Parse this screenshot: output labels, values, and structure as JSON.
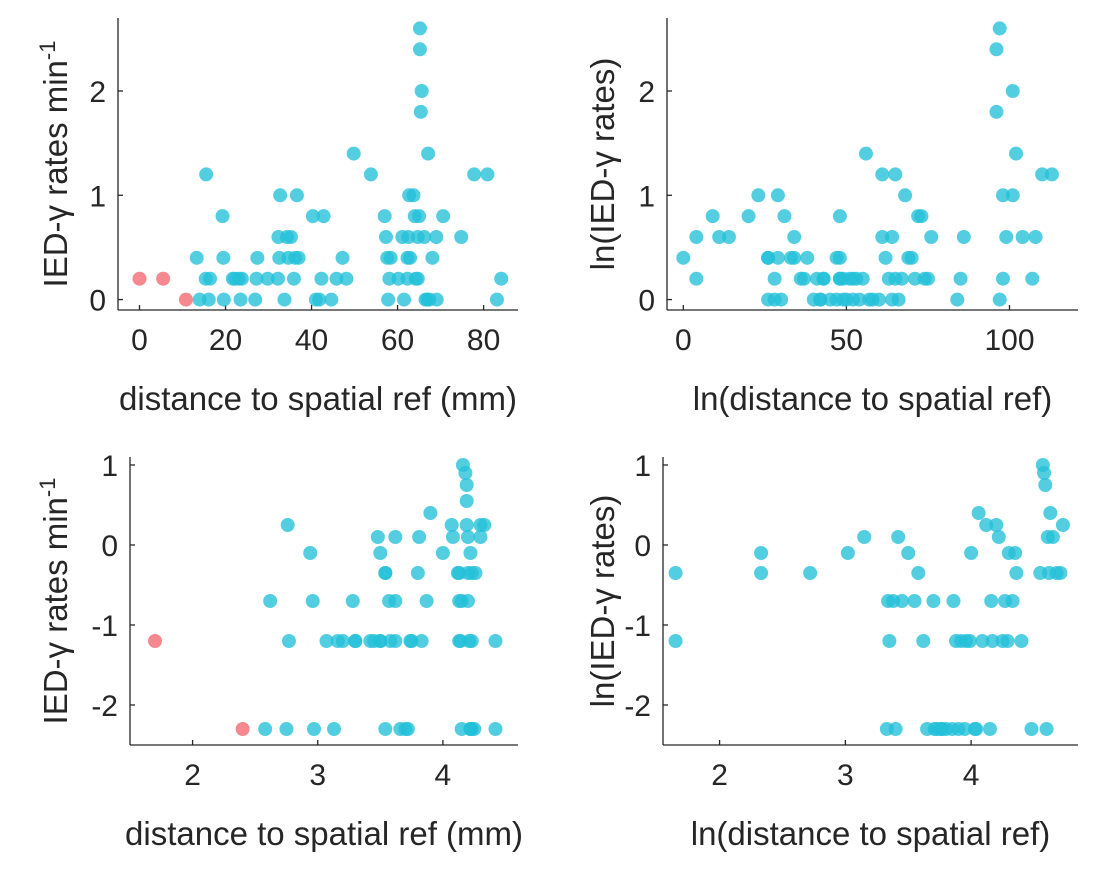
{
  "colors": {
    "teal": "#22c0d8",
    "red": "#f4737d",
    "axis": "#262626"
  },
  "chart_data": [
    {
      "type": "scatter",
      "title": "",
      "xlabel": "distance to spatial ref (mm)",
      "ylabel": "IED-γ rates min",
      "ylabel_sup": "-1",
      "xlim": [
        -5,
        88
      ],
      "ylim": [
        -0.1,
        2.7
      ],
      "xticks": [
        0,
        20,
        40,
        60,
        80
      ],
      "yticks": [
        0,
        1,
        2
      ],
      "xtick_labels": [
        "0",
        "20",
        "40",
        "60",
        "80"
      ],
      "ytick_labels": [
        "0",
        "1",
        "2"
      ],
      "series": [
        {
          "color": "red",
          "x": [
            0,
            5.5,
            10.8
          ],
          "y": [
            0.2,
            0.2,
            0
          ]
        },
        {
          "color": "teal",
          "x": [
            13.3,
            14,
            15.4,
            15.5,
            16.1,
            16.4,
            19.3,
            19.5,
            19.6,
            21.7,
            22.2,
            23.1,
            23.5,
            23.8,
            26.9,
            27.2,
            27.4,
            29.8,
            32.2,
            32.3,
            32.5,
            32.7,
            33.7,
            34.3,
            34.6,
            35.2,
            35.9,
            36.2,
            36.6,
            37,
            40.3,
            41,
            41.8,
            42.3,
            42.8,
            44.6,
            45.8,
            47.2,
            48.1,
            49.8,
            53.8,
            57,
            57.3,
            57.6,
            57.8,
            58.1,
            58.4,
            60.2,
            61.1,
            61.5,
            62.3,
            62.3,
            62.5,
            62.7,
            62.9,
            63.7,
            64,
            64.2,
            64.7,
            64.7,
            65,
            65.2,
            65.2,
            65.4,
            65.6,
            66.2,
            66.5,
            66.9,
            67.1,
            67.4,
            68.1,
            69,
            69.1,
            70.6,
            74.8,
            77.8,
            80.9,
            83.1,
            84.1
          ],
          "y": [
            0.4,
            0,
            0.2,
            1.2,
            0,
            0.2,
            0.8,
            0.4,
            0,
            0.2,
            0.2,
            0.2,
            0,
            0.2,
            0,
            0.2,
            0.4,
            0.2,
            0.2,
            0.6,
            0.4,
            1,
            0,
            0.6,
            0.4,
            0.6,
            0.2,
            0.4,
            1,
            0.4,
            0.8,
            0,
            0,
            0.2,
            0.8,
            0,
            0.2,
            0.4,
            0.2,
            1.4,
            1.2,
            0.8,
            0.6,
            0.4,
            0,
            0.2,
            0.4,
            0.2,
            0.6,
            0,
            0.2,
            0.4,
            0.6,
            1,
            0.4,
            1,
            0.8,
            0.2,
            0.2,
            0.6,
            0.8,
            2.6,
            2.4,
            1.8,
            2,
            0.6,
            0,
            0,
            1.4,
            0,
            0.4,
            0.6,
            0,
            0.8,
            0.6,
            1.2,
            1.2,
            0,
            0.2
          ]
        }
      ]
    },
    {
      "type": "scatter",
      "title": "",
      "xlabel": "ln(distance to spatial ref)",
      "ylabel": "ln(IED-γ rates)",
      "ylabel_sup": "",
      "xlim": [
        -5,
        121
      ],
      "ylim": [
        -0.1,
        2.7
      ],
      "xticks": [
        0,
        50,
        100
      ],
      "yticks": [
        0,
        1,
        2
      ],
      "xtick_labels": [
        "0",
        "50",
        "100"
      ],
      "ytick_labels": [
        "0",
        "1",
        "2"
      ],
      "series": [
        {
          "color": "teal",
          "x": [
            0,
            4,
            4,
            9,
            11,
            14,
            20,
            23,
            26,
            26,
            26,
            28,
            28,
            29,
            29,
            30,
            31,
            33,
            34,
            34,
            36,
            37,
            38,
            40,
            41,
            42,
            42,
            43,
            43,
            45,
            47,
            47,
            48,
            48,
            48,
            48,
            49,
            49,
            50,
            51,
            52,
            52,
            53,
            54,
            55,
            56,
            57,
            58,
            60,
            61,
            61,
            62,
            63,
            64,
            64,
            65,
            65,
            66,
            67,
            68,
            69,
            70,
            71,
            72,
            73,
            74,
            75,
            76,
            84,
            85,
            86,
            96,
            96,
            97,
            97,
            98,
            98,
            99,
            101,
            101,
            102,
            104,
            107,
            108,
            110,
            113
          ],
          "y": [
            0.4,
            0.2,
            0.6,
            0.8,
            0.6,
            0.6,
            0.8,
            1,
            0.4,
            0.4,
            0,
            0.2,
            0,
            0.4,
            1,
            0,
            0.8,
            0.4,
            0.4,
            0.6,
            0.2,
            0.2,
            0.4,
            0,
            0.2,
            0,
            0,
            0.2,
            0.2,
            0,
            0.4,
            0,
            0.4,
            0.8,
            0.2,
            0.2,
            0,
            0.2,
            0,
            0.2,
            0.2,
            0,
            0.2,
            0,
            0.2,
            1.4,
            0,
            0,
            0,
            0.6,
            1.2,
            0.4,
            0.2,
            0,
            0.6,
            1.2,
            0.2,
            0,
            0.2,
            1,
            0.4,
            0.4,
            0.2,
            0.8,
            0.8,
            0.2,
            0.2,
            0.6,
            0,
            0.2,
            0.6,
            1.8,
            2.4,
            2.6,
            0,
            1,
            0.2,
            0.6,
            1,
            2,
            1.4,
            0.6,
            0.2,
            0.6,
            1.2,
            1.2
          ]
        }
      ]
    },
    {
      "type": "scatter",
      "title": "",
      "xlabel": "distance to spatial ref (mm)",
      "ylabel": "IED-γ rates min",
      "ylabel_sup": "-1",
      "xlim": [
        1.5,
        4.6
      ],
      "ylim": [
        -2.5,
        1.1
      ],
      "xticks": [
        2,
        3,
        4
      ],
      "yticks": [
        -2,
        -1,
        0,
        1
      ],
      "xtick_labels": [
        "2",
        "3",
        "4"
      ],
      "ytick_labels": [
        "-2",
        "-1",
        "0",
        "1"
      ],
      "series": [
        {
          "color": "red",
          "x": [
            1.7,
            2.4
          ],
          "y": [
            -1.2,
            -2.3
          ]
        },
        {
          "color": "teal",
          "x": [
            2.58,
            2.62,
            2.75,
            2.76,
            2.77,
            2.94,
            2.96,
            2.97,
            3.07,
            3.13,
            3.16,
            3.2,
            3.28,
            3.3,
            3.3,
            3.42,
            3.45,
            3.48,
            3.5,
            3.5,
            3.5,
            3.54,
            3.54,
            3.54,
            3.57,
            3.58,
            3.62,
            3.62,
            3.62,
            3.66,
            3.7,
            3.72,
            3.74,
            3.75,
            3.8,
            3.81,
            3.83,
            3.87,
            3.9,
            4,
            4.07,
            4.08,
            4.12,
            4.13,
            4.13,
            4.13,
            4.14,
            4.15,
            4.15,
            4.16,
            4.18,
            4.19,
            4.19,
            4.19,
            4.2,
            4.2,
            4.2,
            4.21,
            4.22,
            4.22,
            4.22,
            4.23,
            4.23,
            4.23,
            4.25,
            4.26,
            4.3,
            4.3,
            4.33,
            4.42,
            4.42
          ],
          "y": [
            -2.3,
            -0.7,
            -2.3,
            0.25,
            -1.2,
            -0.1,
            -0.7,
            -2.3,
            -1.2,
            -2.3,
            -1.2,
            -1.2,
            -0.7,
            -1.2,
            -1.2,
            -1.2,
            -1.2,
            0.1,
            -0.1,
            -1.2,
            -1.2,
            -0.35,
            -2.3,
            -0.35,
            -0.7,
            -1.2,
            0.1,
            -0.7,
            -1.2,
            -2.3,
            -2.3,
            -2.3,
            -1.2,
            -1.2,
            -0.35,
            0.1,
            -1.2,
            -0.7,
            0.4,
            -0.1,
            0.25,
            0.1,
            -0.35,
            -0.7,
            -1.2,
            -0.35,
            -1.2,
            -2.3,
            -0.7,
            1,
            0.9,
            0.75,
            0.55,
            0.25,
            0.1,
            -0.35,
            -0.7,
            -1.2,
            -2.3,
            -2.3,
            -0.1,
            -0.35,
            -1.2,
            -2.3,
            -2.3,
            -0.35,
            0.1,
            0.25,
            0.25,
            -2.3,
            -1.2
          ]
        }
      ]
    },
    {
      "type": "scatter",
      "title": "",
      "xlabel": "ln(distance to spatial ref)",
      "ylabel": "ln(IED-γ rates)",
      "ylabel_sup": "",
      "xlim": [
        1.55,
        4.85
      ],
      "ylim": [
        -2.5,
        1.1
      ],
      "xticks": [
        2,
        3,
        4
      ],
      "yticks": [
        -2,
        -1,
        0,
        1
      ],
      "xtick_labels": [
        "2",
        "3",
        "4"
      ],
      "ytick_labels": [
        "-2",
        "-1",
        "0",
        "1"
      ],
      "series": [
        {
          "color": "teal",
          "x": [
            1.65,
            1.65,
            2.33,
            2.33,
            2.72,
            3.02,
            3.15,
            3.33,
            3.34,
            3.35,
            3.38,
            3.4,
            3.42,
            3.45,
            3.5,
            3.55,
            3.58,
            3.62,
            3.65,
            3.7,
            3.71,
            3.73,
            3.76,
            3.77,
            3.8,
            3.85,
            3.86,
            3.88,
            3.9,
            3.92,
            3.95,
            3.96,
            3.99,
            4,
            4.03,
            4.04,
            4.06,
            4.09,
            4.12,
            4.15,
            4.16,
            4.17,
            4.2,
            4.22,
            4.25,
            4.27,
            4.29,
            4.3,
            4.33,
            4.35,
            4.36,
            4.4,
            4.48,
            4.55,
            4.57,
            4.58,
            4.59,
            4.6,
            4.61,
            4.62,
            4.63,
            4.65,
            4.68,
            4.71,
            4.73
          ],
          "y": [
            -0.35,
            -1.2,
            -0.1,
            -0.35,
            -0.35,
            -0.1,
            0.1,
            -2.3,
            -0.7,
            -1.2,
            -0.7,
            -2.3,
            0.1,
            -0.7,
            -0.1,
            -0.7,
            -0.35,
            -1.2,
            -2.3,
            -0.7,
            -2.3,
            -2.3,
            -2.3,
            -2.3,
            -2.3,
            -2.3,
            -0.7,
            -1.2,
            -2.3,
            -1.2,
            -2.3,
            -1.2,
            -1.2,
            -0.1,
            -2.3,
            -2.3,
            0.4,
            -1.2,
            0.25,
            -2.3,
            -0.7,
            -1.2,
            0.25,
            0.1,
            -1.2,
            -0.7,
            -1.2,
            -0.1,
            -0.7,
            -0.1,
            -0.35,
            -1.2,
            -2.3,
            -0.35,
            1,
            0.9,
            0.75,
            -2.3,
            0.1,
            -0.35,
            0.4,
            0.1,
            -0.35,
            -0.35,
            0.25
          ]
        }
      ]
    }
  ]
}
